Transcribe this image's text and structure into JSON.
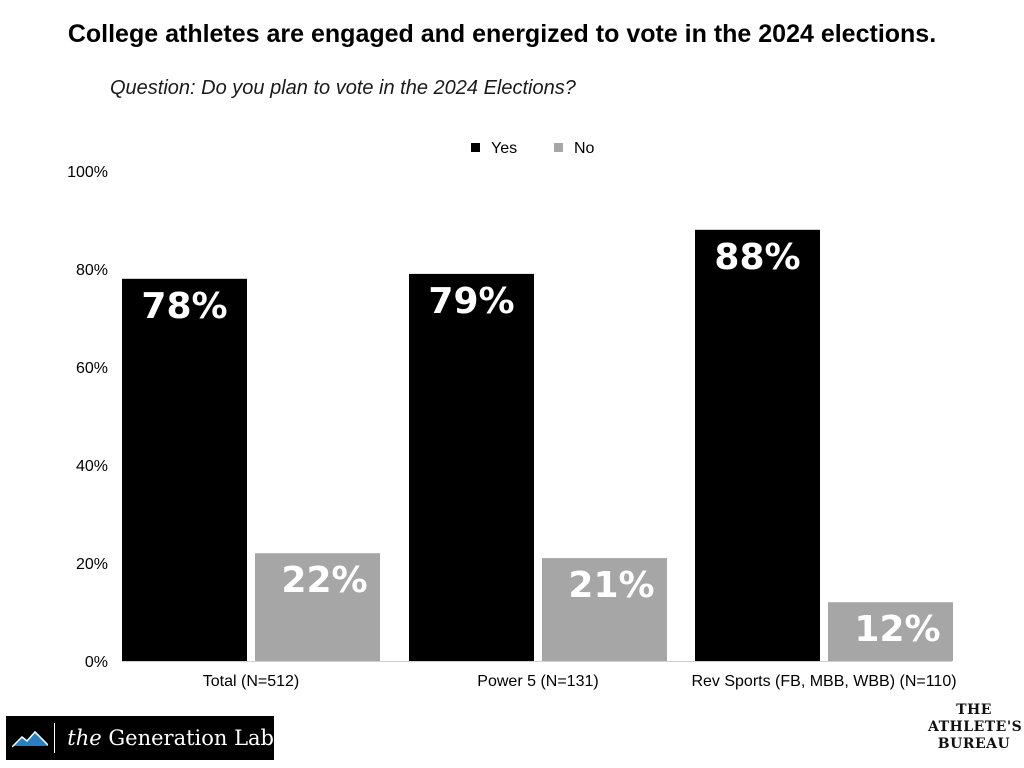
{
  "header": {
    "title": "College athletes are engaged and energized to vote in the 2024 elections.",
    "subtitle": "Question: Do you plan to vote in the 2024 Elections?"
  },
  "colors": {
    "yes": "#000000",
    "no": "#a6a6a6",
    "label": "#ffffff"
  },
  "chart_data": {
    "type": "bar",
    "title": "College athletes are engaged and energized to vote in the 2024 elections.",
    "subtitle": "Question: Do you plan to vote in the 2024 Elections?",
    "categories": [
      "Total (N=512)",
      "Power 5 (N=131)",
      "Rev Sports (FB, MBB, WBB) (N=110)"
    ],
    "series": [
      {
        "name": "Yes",
        "values": [
          78,
          79,
          88
        ],
        "labels": [
          "78%",
          "79%",
          "88%"
        ],
        "color": "#000000"
      },
      {
        "name": "No",
        "values": [
          22,
          21,
          12
        ],
        "labels": [
          "22%",
          "21%",
          "12%"
        ],
        "color": "#a6a6a6"
      }
    ],
    "ylim": [
      0,
      100
    ],
    "yticks": [
      0,
      20,
      40,
      60,
      80,
      100
    ],
    "ytick_labels": [
      "0%",
      "20%",
      "40%",
      "60%",
      "80%",
      "100%"
    ],
    "legend": {
      "position": "top-center",
      "entries": [
        "Yes",
        "No"
      ]
    },
    "grid": false
  },
  "branding": {
    "generation_lab_prefix": "the",
    "generation_lab_name": "Generation Lab",
    "athletes_bureau_lines": [
      "THE",
      "ATHLETE'S",
      "BUREAU"
    ],
    "logo_icon": "mountain-icon"
  }
}
